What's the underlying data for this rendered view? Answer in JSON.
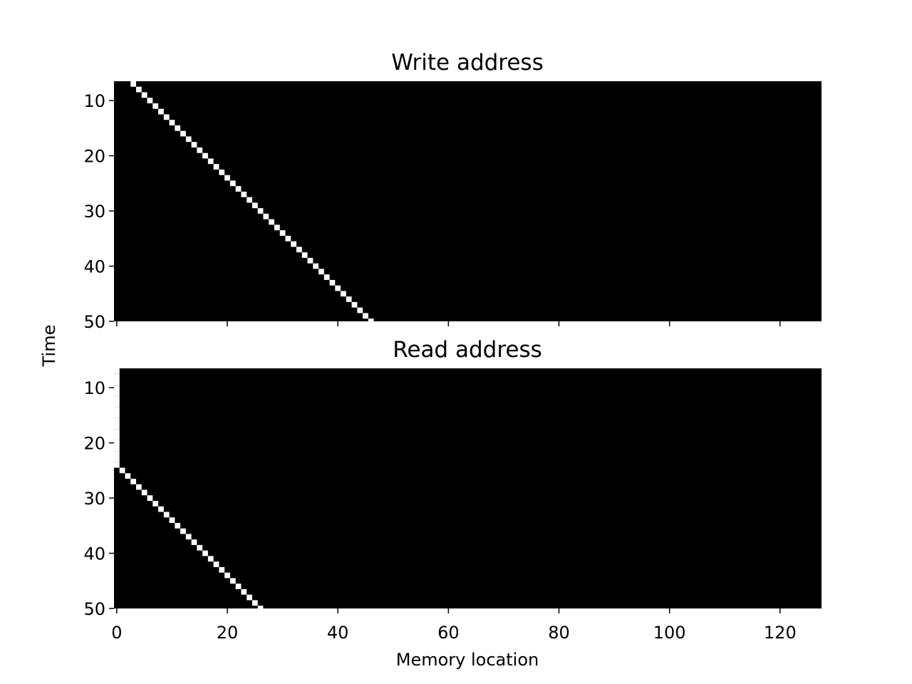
{
  "chart_data": [
    {
      "type": "heatmap",
      "title": "Write address",
      "xlabel": "",
      "ylabel": "Time",
      "xlim": [
        -0.5,
        127.5
      ],
      "ylim": [
        50,
        6.5
      ],
      "colormap": "gray",
      "background": "#000000",
      "highlight": "#ffffff",
      "xticks": [
        0,
        20,
        40,
        60,
        80,
        100,
        120
      ],
      "xtick_labels_shown": false,
      "yticks": [
        10,
        20,
        30,
        40,
        50
      ],
      "active_cells": [
        {
          "time": 7,
          "location": 3
        },
        {
          "time": 8,
          "location": 4
        },
        {
          "time": 9,
          "location": 5
        },
        {
          "time": 10,
          "location": 6
        },
        {
          "time": 11,
          "location": 7
        },
        {
          "time": 12,
          "location": 8
        },
        {
          "time": 13,
          "location": 9
        },
        {
          "time": 14,
          "location": 10
        },
        {
          "time": 15,
          "location": 11
        },
        {
          "time": 16,
          "location": 12
        },
        {
          "time": 17,
          "location": 13
        },
        {
          "time": 18,
          "location": 14
        },
        {
          "time": 19,
          "location": 15
        },
        {
          "time": 20,
          "location": 16
        },
        {
          "time": 21,
          "location": 17
        },
        {
          "time": 22,
          "location": 18
        },
        {
          "time": 23,
          "location": 19
        },
        {
          "time": 24,
          "location": 20
        },
        {
          "time": 25,
          "location": 21
        },
        {
          "time": 26,
          "location": 22
        },
        {
          "time": 27,
          "location": 23
        },
        {
          "time": 28,
          "location": 24
        },
        {
          "time": 29,
          "location": 25
        },
        {
          "time": 30,
          "location": 26
        },
        {
          "time": 31,
          "location": 27
        },
        {
          "time": 32,
          "location": 28
        },
        {
          "time": 33,
          "location": 29
        },
        {
          "time": 34,
          "location": 30
        },
        {
          "time": 35,
          "location": 31
        },
        {
          "time": 36,
          "location": 32
        },
        {
          "time": 37,
          "location": 33
        },
        {
          "time": 38,
          "location": 34
        },
        {
          "time": 39,
          "location": 35
        },
        {
          "time": 40,
          "location": 36
        },
        {
          "time": 41,
          "location": 37
        },
        {
          "time": 42,
          "location": 38
        },
        {
          "time": 43,
          "location": 39
        },
        {
          "time": 44,
          "location": 40
        },
        {
          "time": 45,
          "location": 41
        },
        {
          "time": 46,
          "location": 42
        },
        {
          "time": 47,
          "location": 43
        },
        {
          "time": 48,
          "location": 44
        },
        {
          "time": 49,
          "location": 45
        },
        {
          "time": 50,
          "location": 46
        }
      ]
    },
    {
      "type": "heatmap",
      "title": "Read address",
      "xlabel": "Memory location",
      "ylabel": "Time",
      "xlim": [
        -0.5,
        127.5
      ],
      "ylim": [
        50,
        6.5
      ],
      "colormap": "gray",
      "background": "#000000",
      "highlight": "#ffffff",
      "xticks": [
        0,
        20,
        40,
        60,
        80,
        100,
        120
      ],
      "xtick_labels_shown": true,
      "yticks": [
        10,
        20,
        30,
        40,
        50
      ],
      "active_cells": [
        {
          "time": 7,
          "location": 0
        },
        {
          "time": 8,
          "location": 0
        },
        {
          "time": 9,
          "location": 0
        },
        {
          "time": 10,
          "location": 0
        },
        {
          "time": 11,
          "location": 0
        },
        {
          "time": 12,
          "location": 0
        },
        {
          "time": 13,
          "location": 0
        },
        {
          "time": 14,
          "location": 0
        },
        {
          "time": 15,
          "location": 0
        },
        {
          "time": 16,
          "location": 0
        },
        {
          "time": 17,
          "location": 0
        },
        {
          "time": 18,
          "location": 0
        },
        {
          "time": 19,
          "location": 0
        },
        {
          "time": 20,
          "location": 0
        },
        {
          "time": 21,
          "location": 0
        },
        {
          "time": 22,
          "location": 0
        },
        {
          "time": 23,
          "location": 0
        },
        {
          "time": 24,
          "location": 0
        },
        {
          "time": 25,
          "location": 1
        },
        {
          "time": 26,
          "location": 2
        },
        {
          "time": 27,
          "location": 3
        },
        {
          "time": 28,
          "location": 4
        },
        {
          "time": 29,
          "location": 5
        },
        {
          "time": 30,
          "location": 6
        },
        {
          "time": 31,
          "location": 7
        },
        {
          "time": 32,
          "location": 8
        },
        {
          "time": 33,
          "location": 9
        },
        {
          "time": 34,
          "location": 10
        },
        {
          "time": 35,
          "location": 11
        },
        {
          "time": 36,
          "location": 12
        },
        {
          "time": 37,
          "location": 13
        },
        {
          "time": 38,
          "location": 14
        },
        {
          "time": 39,
          "location": 15
        },
        {
          "time": 40,
          "location": 16
        },
        {
          "time": 41,
          "location": 17
        },
        {
          "time": 42,
          "location": 18
        },
        {
          "time": 43,
          "location": 19
        },
        {
          "time": 44,
          "location": 20
        },
        {
          "time": 45,
          "location": 21
        },
        {
          "time": 46,
          "location": 22
        },
        {
          "time": 47,
          "location": 23
        },
        {
          "time": 48,
          "location": 24
        },
        {
          "time": 49,
          "location": 25
        },
        {
          "time": 50,
          "location": 26
        }
      ]
    }
  ]
}
